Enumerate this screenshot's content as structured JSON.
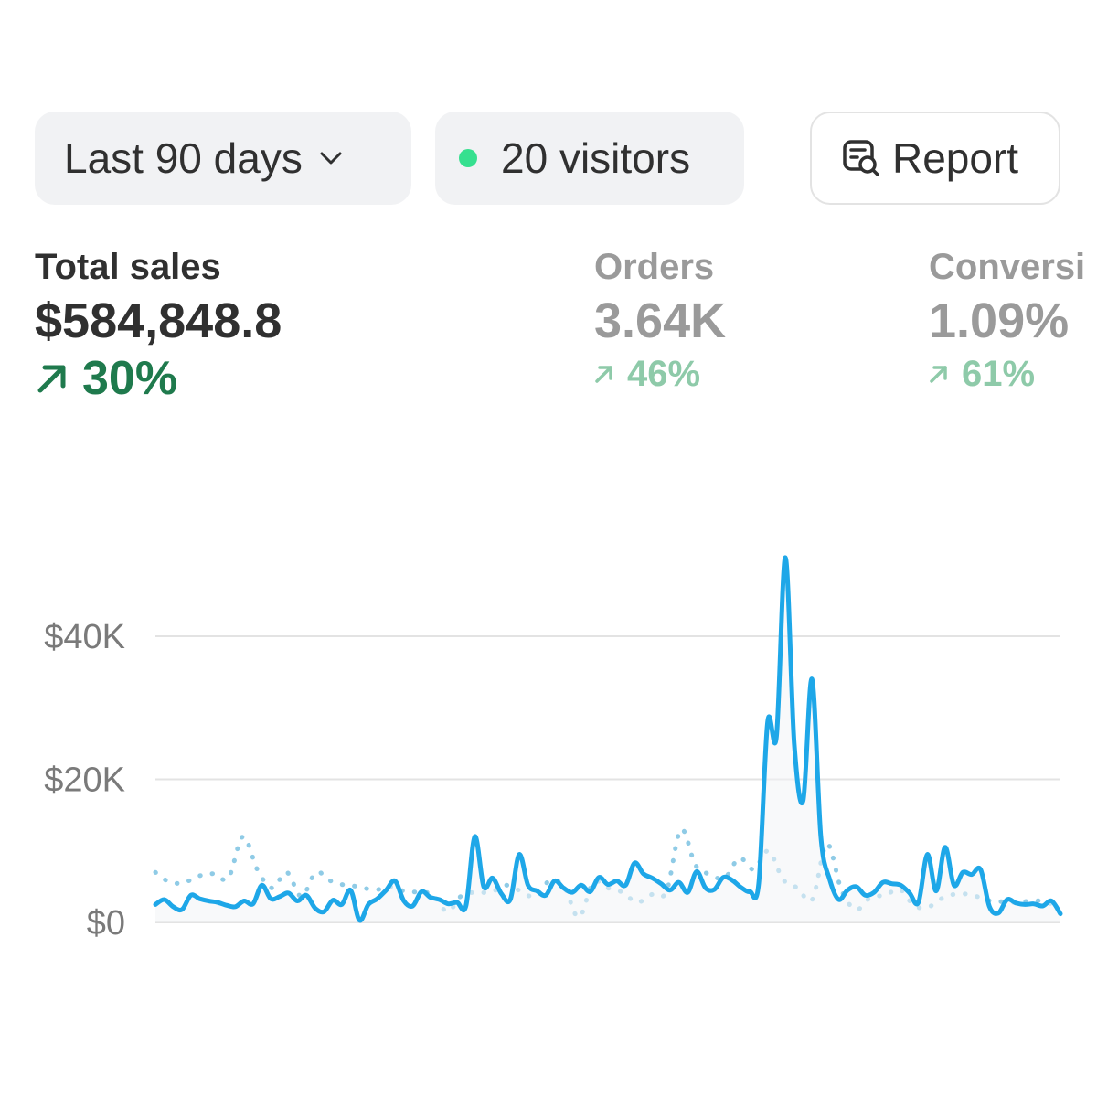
{
  "toolbar": {
    "date_range_label": "Last 90 days",
    "visitors_label": "20 visitors",
    "report_label": "Report"
  },
  "metrics": [
    {
      "label": "Total sales",
      "value": "$584,848.8",
      "delta": "30%"
    },
    {
      "label": "Orders",
      "value": "3.64K",
      "delta": "46%"
    },
    {
      "label": "Conversi",
      "value": "1.09%",
      "delta": "61%"
    }
  ],
  "colors": {
    "series_current": "#1ea7e8",
    "series_previous": "#8fcbe6",
    "delta_positive": "#1f7a4d",
    "visitors_dot": "#36e08f",
    "gridline": "#e3e3e3"
  },
  "icons": {
    "date_range": "chevron-down-icon",
    "visitors": "status-dot-icon",
    "report": "report-search-icon",
    "delta": "arrow-up-right-icon"
  },
  "chart_data": {
    "type": "line",
    "yticks": [
      "$0",
      "$20K",
      "$40K"
    ],
    "ylim": [
      0,
      52000
    ],
    "grid": true,
    "series": [
      {
        "style": "solid",
        "values": [
          2500,
          3200,
          2200,
          1800,
          3800,
          3300,
          3000,
          2800,
          2400,
          2200,
          3000,
          2600,
          5200,
          3300,
          3600,
          4100,
          3000,
          3800,
          2000,
          1500,
          3100,
          2500,
          4500,
          300,
          2500,
          3300,
          4500,
          5800,
          3000,
          2300,
          4300,
          3500,
          3200,
          2600,
          2800,
          2300,
          12000,
          5000,
          6200,
          4000,
          3200,
          9500,
          5200,
          4400,
          3800,
          5800,
          4800,
          4200,
          5200,
          4300,
          6300,
          5300,
          5800,
          5200,
          8300,
          6800,
          6200,
          5400,
          4500,
          5600,
          4200,
          7100,
          4800,
          4600,
          6300,
          5900,
          4900,
          4300,
          5500,
          28000,
          26000,
          51000,
          25000,
          17000,
          34000,
          12000,
          6000,
          3200,
          4500,
          5000,
          3800,
          4200,
          5600,
          5400,
          5200,
          4100,
          2800,
          9500,
          4400,
          10500,
          5200,
          7000,
          6700,
          7400,
          2200,
          1300,
          3200,
          2700,
          2500,
          2600,
          2300,
          3000,
          1200
        ],
        "name": ""
      },
      {
        "style": "dotted",
        "values": [
          7000,
          5600,
          5600,
          6500,
          6800,
          6200,
          12000,
          7300,
          4800,
          7000,
          3600,
          7000,
          5800,
          5200,
          5000,
          4500,
          5000,
          4400,
          4200,
          3900,
          1500,
          3800,
          4200,
          4200,
          5200,
          4400,
          3600,
          5800,
          5000,
          700,
          5600,
          4800,
          4200,
          2800,
          3900,
          4300,
          13000,
          8000,
          6700,
          6200,
          9000,
          7400,
          10000,
          6000,
          4800,
          3200,
          11000,
          4500,
          1800,
          3500,
          3800,
          4600,
          2300,
          2200,
          3500,
          4000,
          3800,
          3100,
          2900,
          2800,
          3000,
          2900,
          1800
        ],
        "name": ""
      }
    ]
  }
}
